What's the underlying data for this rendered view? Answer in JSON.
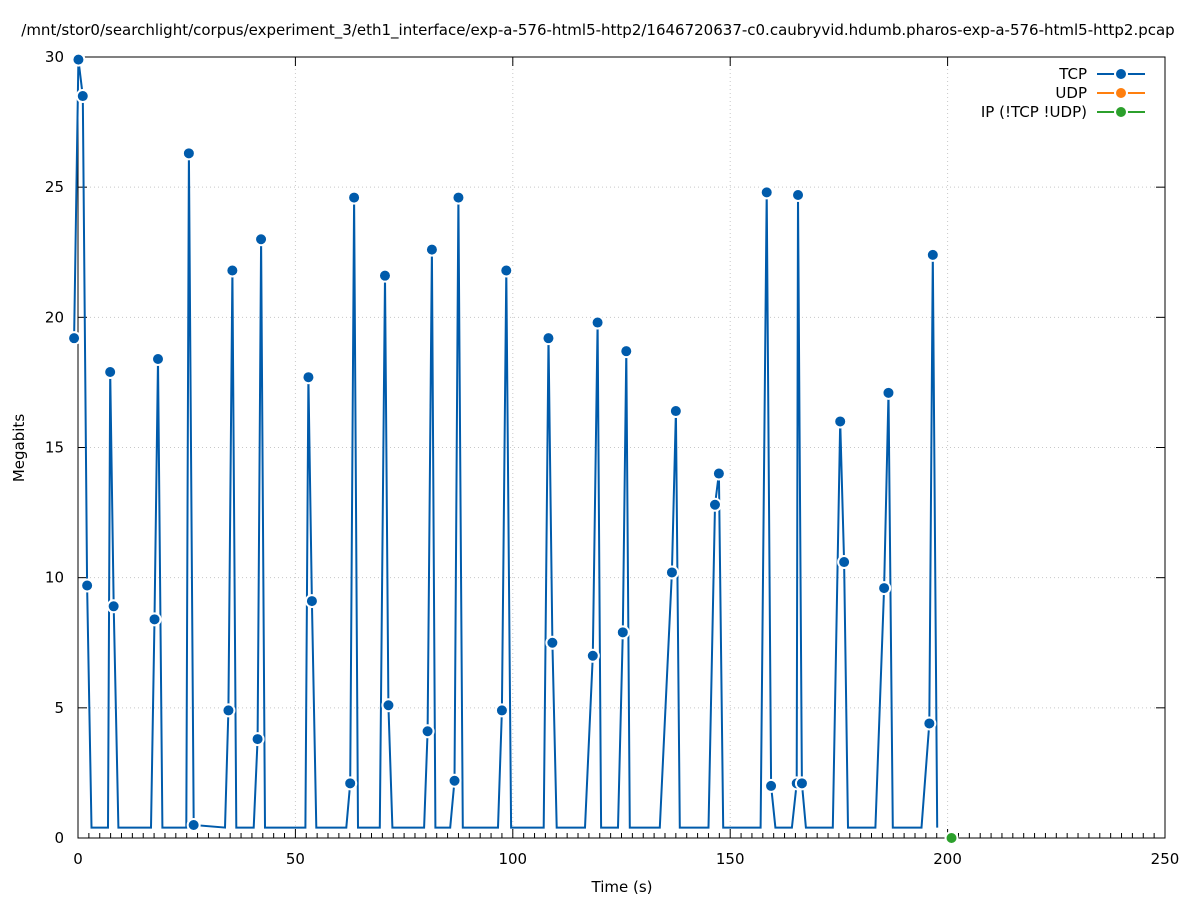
{
  "colors": {
    "tcp": "#005bab",
    "udp": "#ff7f0e",
    "ip": "#2ca02c",
    "grid": "#c8c8c8"
  },
  "chart_data": {
    "type": "line",
    "title": "/mnt/stor0/searchlight/corpus/experiment_3/eth1_interface/exp-a-576-html5-http2/1646720637-c0.caubryvid.hdumb.pharos-exp-a-576-html5-http2.pcap",
    "xlabel": "Time (s)",
    "ylabel": "Megabits",
    "xlim": [
      0,
      250
    ],
    "ylim": [
      0,
      30
    ],
    "xticks": [
      0,
      50,
      100,
      150,
      200,
      250
    ],
    "yticks": [
      0,
      5,
      10,
      15,
      20,
      25,
      30
    ],
    "grid": true,
    "legend_position": "top-right",
    "series": [
      {
        "name": "TCP",
        "color": "#005bab",
        "points": [
          [
            -0.9,
            19.2
          ],
          [
            0.1,
            29.9
          ],
          [
            1.1,
            28.5
          ],
          [
            2.1,
            9.7
          ],
          [
            3.1,
            0.4
          ],
          [
            6.9,
            0.4
          ],
          [
            7.4,
            17.9
          ],
          [
            8.2,
            8.9
          ],
          [
            9.3,
            0.4
          ],
          [
            16.8,
            0.4
          ],
          [
            17.6,
            8.4
          ],
          [
            18.4,
            18.4
          ],
          [
            19.4,
            0.4
          ],
          [
            24.9,
            0.4
          ],
          [
            25.5,
            26.3
          ],
          [
            26.6,
            0.5
          ],
          [
            33.8,
            0.4
          ],
          [
            34.6,
            4.9
          ],
          [
            35.5,
            21.8
          ],
          [
            36.4,
            0.4
          ],
          [
            40.4,
            0.4
          ],
          [
            41.3,
            3.8
          ],
          [
            42.1,
            23.0
          ],
          [
            43.0,
            0.4
          ],
          [
            52.3,
            0.4
          ],
          [
            53.0,
            17.7
          ],
          [
            53.8,
            9.1
          ],
          [
            54.8,
            0.4
          ],
          [
            61.7,
            0.4
          ],
          [
            62.6,
            2.1
          ],
          [
            63.5,
            24.6
          ],
          [
            64.4,
            0.4
          ],
          [
            69.4,
            0.4
          ],
          [
            70.6,
            21.6
          ],
          [
            71.4,
            5.1
          ],
          [
            72.3,
            0.4
          ],
          [
            79.6,
            0.4
          ],
          [
            80.4,
            4.1
          ],
          [
            81.4,
            22.6
          ],
          [
            82.2,
            0.4
          ],
          [
            85.6,
            0.4
          ],
          [
            86.6,
            2.2
          ],
          [
            87.5,
            24.6
          ],
          [
            88.5,
            0.4
          ],
          [
            96.6,
            0.4
          ],
          [
            97.5,
            4.9
          ],
          [
            98.5,
            21.8
          ],
          [
            99.6,
            0.4
          ],
          [
            107.1,
            0.4
          ],
          [
            108.2,
            19.2
          ],
          [
            109.1,
            7.5
          ],
          [
            110.1,
            0.4
          ],
          [
            116.6,
            0.4
          ],
          [
            118.4,
            7.0
          ],
          [
            119.5,
            19.8
          ],
          [
            120.3,
            0.4
          ],
          [
            124.2,
            0.4
          ],
          [
            125.3,
            7.9
          ],
          [
            126.1,
            18.7
          ],
          [
            126.9,
            0.4
          ],
          [
            133.8,
            0.4
          ],
          [
            136.6,
            10.2
          ],
          [
            137.5,
            16.4
          ],
          [
            138.4,
            0.4
          ],
          [
            145.0,
            0.4
          ],
          [
            146.5,
            12.8
          ],
          [
            147.4,
            14.0
          ],
          [
            148.4,
            0.4
          ],
          [
            157.0,
            0.4
          ],
          [
            158.4,
            24.8
          ],
          [
            159.4,
            2.0
          ],
          [
            160.4,
            0.4
          ],
          [
            164.2,
            0.4
          ],
          [
            165.3,
            2.1
          ],
          [
            165.6,
            24.7
          ],
          [
            166.5,
            2.1
          ],
          [
            167.4,
            0.4
          ],
          [
            173.6,
            0.4
          ],
          [
            175.3,
            16.0
          ],
          [
            176.2,
            10.6
          ],
          [
            177.1,
            0.4
          ],
          [
            183.4,
            0.4
          ],
          [
            185.4,
            9.6
          ],
          [
            186.4,
            17.1
          ],
          [
            187.4,
            0.4
          ],
          [
            194.0,
            0.4
          ],
          [
            195.8,
            4.4
          ],
          [
            196.6,
            22.4
          ],
          [
            197.6,
            0.4
          ]
        ]
      },
      {
        "name": "UDP",
        "color": "#ff7f0e",
        "points": []
      },
      {
        "name": "IP (!TCP  !UDP)",
        "color": "#2ca02c",
        "points": [
          [
            200.9,
            0
          ]
        ]
      }
    ]
  }
}
